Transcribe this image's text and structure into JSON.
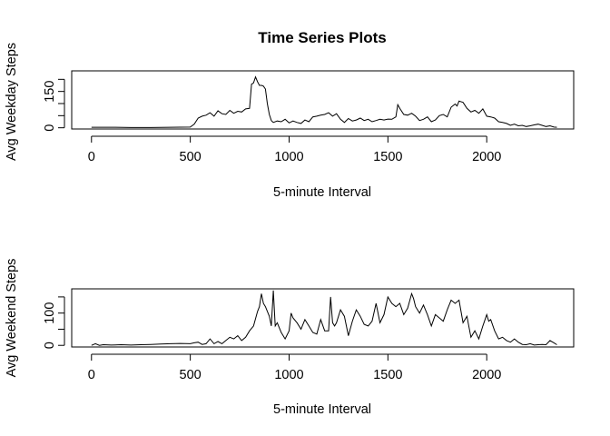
{
  "chart_data": [
    {
      "type": "line",
      "title": "Time Series Plots",
      "xlabel": "5-minute Interval",
      "ylabel": "Avg Weekday Steps",
      "xlim": [
        -100,
        2440
      ],
      "ylim": [
        -5,
        235
      ],
      "xticks": [
        0,
        500,
        1000,
        1500,
        2000
      ],
      "yticks": [
        0,
        50,
        100,
        150,
        200
      ],
      "ytick_labels": [
        "0",
        "",
        "",
        "150",
        ""
      ],
      "grid": false,
      "series": [
        {
          "x": [
            0,
            100,
            200,
            300,
            400,
            500,
            520,
            540,
            560,
            580,
            600,
            620,
            640,
            660,
            680,
            700,
            720,
            740,
            760,
            780,
            800,
            810,
            820,
            830,
            840,
            850,
            860,
            870,
            880,
            890,
            900,
            910,
            920,
            940,
            960,
            980,
            1000,
            1020,
            1040,
            1060,
            1080,
            1100,
            1120,
            1140,
            1160,
            1180,
            1200,
            1220,
            1240,
            1260,
            1280,
            1300,
            1320,
            1340,
            1360,
            1380,
            1400,
            1420,
            1440,
            1460,
            1480,
            1500,
            1520,
            1540,
            1550,
            1560,
            1580,
            1600,
            1620,
            1640,
            1660,
            1680,
            1700,
            1720,
            1740,
            1760,
            1780,
            1800,
            1820,
            1840,
            1850,
            1860,
            1880,
            1900,
            1920,
            1940,
            1960,
            1980,
            2000,
            2020,
            2040,
            2060,
            2080,
            2100,
            2120,
            2140,
            2160,
            2180,
            2200,
            2220,
            2240,
            2260,
            2280,
            2300,
            2320,
            2340,
            2355
          ],
          "y": [
            2,
            2,
            1,
            1,
            2,
            3,
            15,
            40,
            48,
            52,
            62,
            48,
            70,
            58,
            55,
            72,
            60,
            68,
            65,
            78,
            80,
            180,
            185,
            210,
            190,
            175,
            175,
            172,
            160,
            100,
            55,
            30,
            22,
            28,
            25,
            35,
            20,
            28,
            22,
            18,
            32,
            25,
            45,
            48,
            52,
            55,
            62,
            48,
            58,
            35,
            22,
            38,
            28,
            32,
            40,
            30,
            35,
            25,
            30,
            35,
            32,
            36,
            35,
            45,
            95,
            80,
            55,
            52,
            60,
            48,
            30,
            35,
            45,
            25,
            32,
            50,
            55,
            45,
            85,
            98,
            90,
            110,
            105,
            80,
            65,
            72,
            60,
            78,
            48,
            45,
            40,
            25,
            22,
            18,
            10,
            15,
            8,
            10,
            5,
            8,
            12,
            15,
            10,
            5,
            8,
            3,
            2
          ]
        }
      ]
    },
    {
      "type": "line",
      "title": "",
      "xlabel": "5-minute Interval",
      "ylabel": "Avg Weekend Steps",
      "xlim": [
        -100,
        2440
      ],
      "ylim": [
        -5,
        175
      ],
      "xticks": [
        0,
        500,
        1000,
        1500,
        2000
      ],
      "yticks": [
        0,
        50,
        100,
        150
      ],
      "ytick_labels": [
        "0",
        "",
        "100",
        ""
      ],
      "grid": false,
      "series": [
        {
          "x": [
            0,
            20,
            40,
            60,
            100,
            150,
            200,
            250,
            300,
            350,
            400,
            450,
            500,
            520,
            540,
            560,
            580,
            600,
            620,
            640,
            660,
            680,
            700,
            720,
            740,
            760,
            780,
            800,
            820,
            840,
            850,
            860,
            870,
            880,
            900,
            910,
            920,
            930,
            940,
            960,
            980,
            1000,
            1010,
            1020,
            1040,
            1060,
            1080,
            1100,
            1120,
            1140,
            1160,
            1180,
            1200,
            1210,
            1220,
            1230,
            1240,
            1260,
            1280,
            1300,
            1320,
            1340,
            1360,
            1380,
            1400,
            1420,
            1440,
            1460,
            1480,
            1500,
            1520,
            1540,
            1560,
            1580,
            1600,
            1620,
            1630,
            1640,
            1660,
            1680,
            1700,
            1720,
            1740,
            1760,
            1780,
            1800,
            1820,
            1840,
            1860,
            1880,
            1900,
            1920,
            1940,
            1960,
            1980,
            2000,
            2010,
            2020,
            2040,
            2060,
            2080,
            2100,
            2120,
            2140,
            2160,
            2180,
            2200,
            2220,
            2240,
            2260,
            2280,
            2300,
            2320,
            2340,
            2355
          ],
          "y": [
            0,
            5,
            0,
            2,
            1,
            2,
            1,
            2,
            3,
            4,
            5,
            6,
            5,
            8,
            10,
            3,
            5,
            20,
            5,
            12,
            5,
            15,
            25,
            20,
            30,
            15,
            25,
            45,
            60,
            105,
            120,
            160,
            130,
            120,
            90,
            60,
            170,
            60,
            70,
            40,
            20,
            45,
            100,
            85,
            70,
            50,
            80,
            60,
            40,
            35,
            80,
            45,
            45,
            150,
            70,
            60,
            70,
            110,
            90,
            30,
            75,
            110,
            90,
            65,
            60,
            75,
            130,
            70,
            95,
            150,
            130,
            120,
            130,
            95,
            115,
            160,
            145,
            120,
            100,
            125,
            95,
            60,
            95,
            85,
            75,
            110,
            140,
            130,
            140,
            70,
            90,
            25,
            45,
            20,
            60,
            95,
            75,
            80,
            45,
            20,
            25,
            15,
            10,
            20,
            10,
            3,
            2,
            5,
            1,
            2,
            3,
            2,
            15,
            8,
            2
          ]
        }
      ]
    }
  ]
}
